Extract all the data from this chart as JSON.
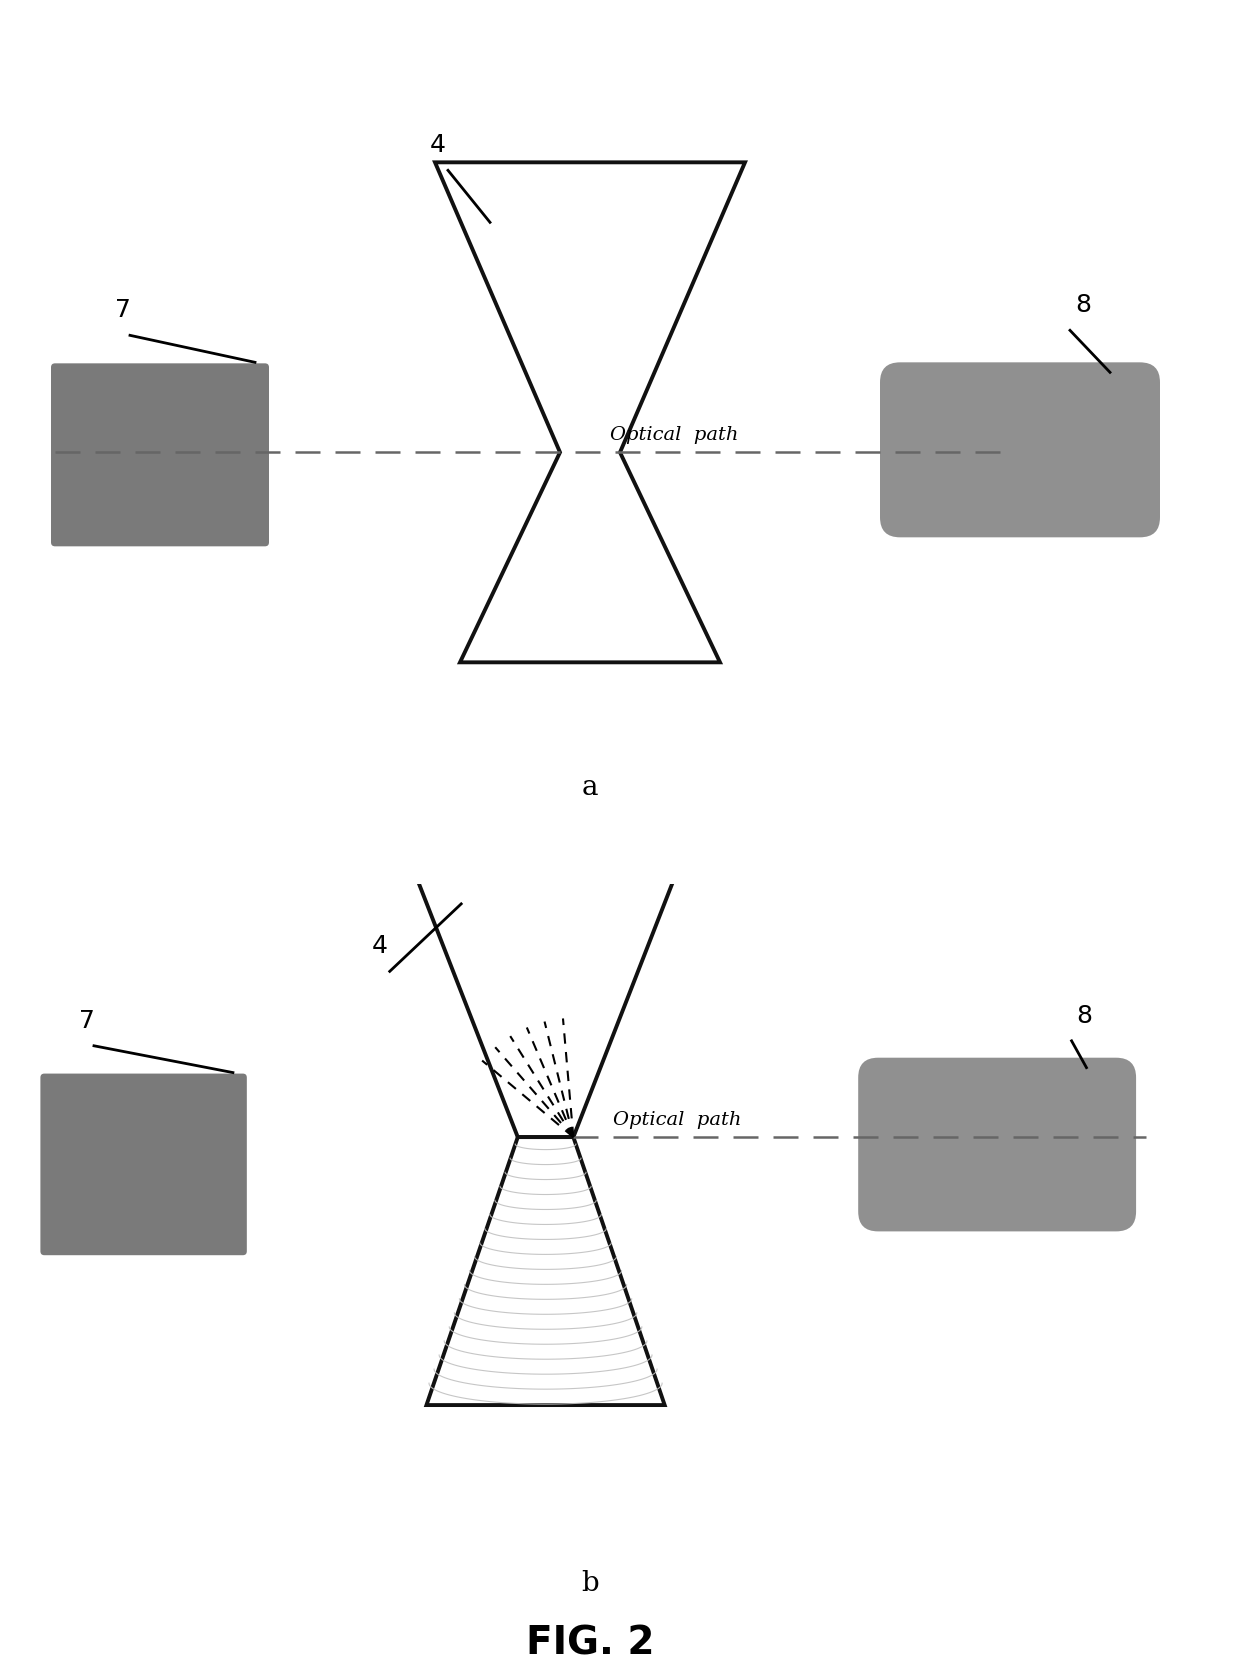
{
  "bg_color": "#ffffff",
  "fig_width": 12.4,
  "fig_height": 16.78,
  "fig_title": "FIG. 2",
  "label_a": "a",
  "label_b": "b",
  "optical_path_text": "Optical  path",
  "label_4": "4",
  "label_7": "7",
  "label_8": "8",
  "box7_color": "#7a7a7a",
  "box8_color": "#909090",
  "vessel_edge_color": "#111111",
  "dashed_color": "#666666",
  "ray_color": "#111111",
  "liquid_curve_color": "#c0c0c0",
  "vessel_lw": 2.8
}
